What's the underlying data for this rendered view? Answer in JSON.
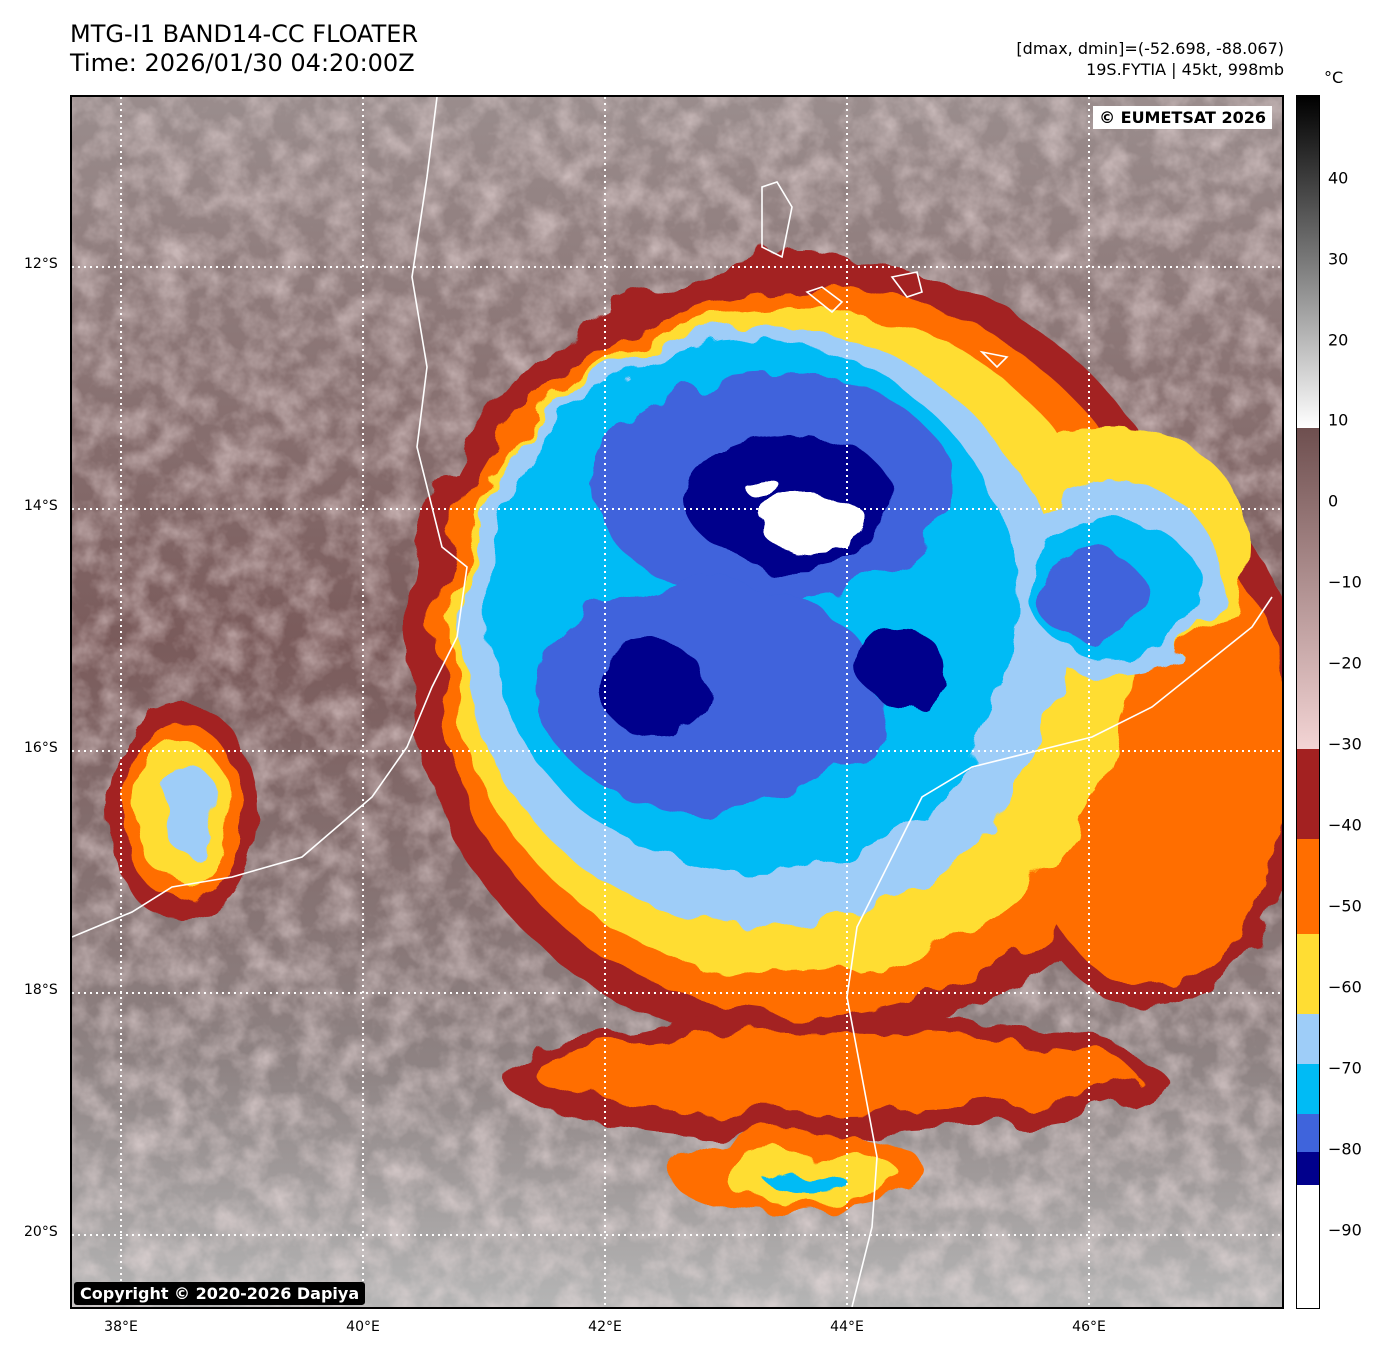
{
  "header": {
    "title_line1": "MTG-I1 BAND14-CC FLOATER",
    "title_line2": "Time: 2026/01/30 04:20:00Z",
    "info_line1": "[dmax, dmin]=(-52.698, -88.067)",
    "info_line2": "19S.FYTIA | 45kt, 998mb"
  },
  "map": {
    "eumetsat_badge": "© EUMETSAT 2026",
    "copyright_badge": "Copyright © 2020-2026 Dapiya",
    "lat_labels": [
      "12°S",
      "14°S",
      "16°S",
      "18°S",
      "20°S"
    ],
    "lon_labels": [
      "38°E",
      "40°E",
      "42°E",
      "44°E",
      "46°E"
    ],
    "extent": {
      "lon_min": 37.6,
      "lon_max": 47.6,
      "lat_north": -10.6,
      "lat_south": -20.6
    }
  },
  "colorbar": {
    "unit": "°C",
    "ticks": [
      "40",
      "30",
      "20",
      "10",
      "0",
      "−10",
      "−20",
      "−30",
      "−40",
      "−50",
      "−60",
      "−70",
      "−80",
      "−90"
    ],
    "colors": {
      "warm_top": "#000000",
      "warm_white": "#ffffff",
      "brown": "#6e4f4f",
      "pink": "#f3d4d4",
      "dark_red": "#a32121",
      "orange": "#ff6e00",
      "yellow": "#ffdd33",
      "light_blue": "#9ecdf8",
      "cyan": "#00bbf5",
      "blue": "#3f64dc",
      "navy": "#01008c",
      "coldest": "#ffffff"
    }
  }
}
